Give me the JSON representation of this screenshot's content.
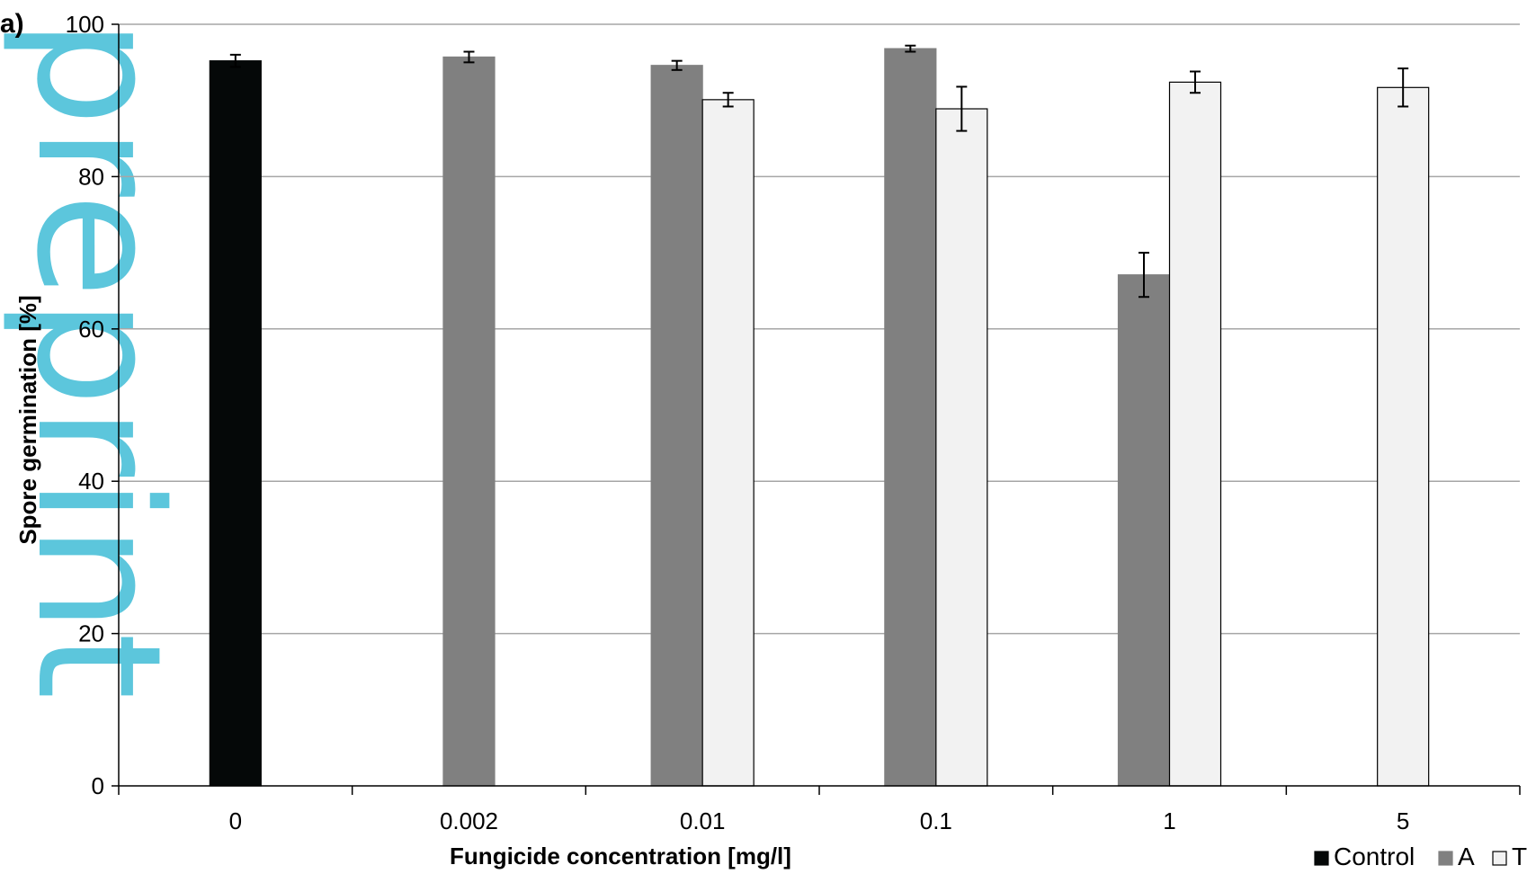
{
  "panel_label": "a)",
  "watermark_text": "preprint",
  "colors": {
    "Control": "#050808",
    "A": "#808080",
    "T": "#f2f2f2",
    "grid": "#a6a6a6",
    "watermark": "#5cc6dc"
  },
  "chart_data": {
    "type": "bar",
    "title": "",
    "xlabel": "Fungicide concentration [mg/l]",
    "ylabel": "Spore germination [%]",
    "ylim": [
      0,
      100
    ],
    "yticks": [
      "0",
      "20",
      "40",
      "60",
      "80",
      "100"
    ],
    "categories": [
      "0",
      "0.002",
      "0.01",
      "0.1",
      "1",
      "5"
    ],
    "grid": "horizontal",
    "legend_position": "bottom-right",
    "series": [
      {
        "name": "Control",
        "values": [
          95.2,
          null,
          null,
          null,
          null,
          null
        ],
        "errors": [
          0.8,
          null,
          null,
          null,
          null,
          null
        ]
      },
      {
        "name": "A",
        "values": [
          null,
          95.7,
          94.6,
          96.8,
          67.1,
          null
        ],
        "errors": [
          null,
          0.7,
          0.6,
          0.4,
          2.9,
          null
        ]
      },
      {
        "name": "T",
        "values": [
          null,
          null,
          90.1,
          88.9,
          92.4,
          91.7
        ],
        "errors": [
          null,
          null,
          0.9,
          2.9,
          1.4,
          2.5
        ]
      }
    ]
  }
}
